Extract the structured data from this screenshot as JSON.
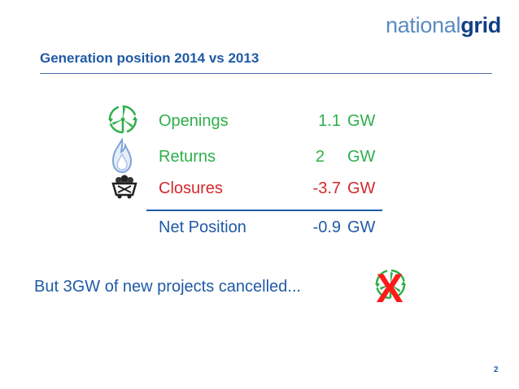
{
  "logo": {
    "part1": "national",
    "part2": "grid"
  },
  "slide": {
    "title": "Generation position 2014 vs 2013",
    "page_number": "2"
  },
  "rows": [
    {
      "label": "Openings",
      "value": "1.1",
      "unit": "GW",
      "icon": "wind-turbine-icon",
      "color": "#2eaf4a"
    },
    {
      "label": "Returns",
      "value": "2",
      "unit": "GW",
      "icon": "gas-flame-icon",
      "color": "#2eaf4a"
    },
    {
      "label": "Closures",
      "value": "-3.7",
      "unit": "GW",
      "icon": "coal-cart-icon",
      "color": "#d4292c"
    }
  ],
  "net": {
    "label": "Net Position",
    "value": "-0.9",
    "unit": "GW",
    "color": "#1f5aa6"
  },
  "cancelled": {
    "text": "But 3GW of new projects cancelled...",
    "icon": "cancelled-wind-turbine-icon",
    "mark": "X"
  }
}
